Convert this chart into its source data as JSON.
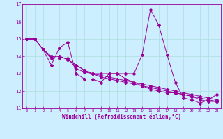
{
  "xlabel": "Windchill (Refroidissement éolien,°C)",
  "background_color": "#cceeff",
  "grid_color": "#aadddd",
  "line_color": "#990099",
  "xlim": [
    -0.5,
    23.5
  ],
  "ylim": [
    11,
    17
  ],
  "yticks": [
    11,
    12,
    13,
    14,
    15,
    16,
    17
  ],
  "xticks": [
    0,
    1,
    2,
    3,
    4,
    5,
    6,
    7,
    8,
    9,
    10,
    11,
    12,
    13,
    14,
    15,
    16,
    17,
    18,
    19,
    20,
    21,
    22,
    23
  ],
  "series": [
    [
      15.0,
      15.0,
      14.4,
      13.5,
      14.5,
      14.8,
      13.0,
      12.7,
      12.7,
      12.5,
      13.0,
      13.0,
      13.0,
      13.0,
      14.1,
      16.7,
      15.8,
      14.1,
      12.5,
      11.6,
      11.5,
      11.3,
      11.5,
      11.8
    ],
    [
      15.0,
      15.0,
      14.4,
      13.9,
      13.9,
      13.9,
      13.3,
      13.1,
      13.0,
      13.0,
      13.0,
      13.0,
      12.7,
      12.5,
      12.3,
      12.1,
      12.0,
      11.9,
      11.9,
      11.8,
      11.7,
      11.5,
      11.4,
      11.4
    ],
    [
      15.0,
      15.0,
      14.4,
      14.0,
      14.0,
      13.8,
      13.5,
      13.2,
      13.0,
      12.9,
      12.8,
      12.7,
      12.6,
      12.5,
      12.4,
      12.3,
      12.2,
      12.1,
      12.0,
      11.9,
      11.8,
      11.7,
      11.6,
      11.5
    ],
    [
      15.0,
      15.0,
      14.4,
      14.0,
      14.0,
      13.8,
      13.5,
      13.2,
      13.0,
      12.8,
      12.7,
      12.6,
      12.5,
      12.4,
      12.3,
      12.2,
      12.1,
      12.0,
      11.9,
      11.8,
      11.7,
      11.6,
      11.5,
      11.4
    ]
  ]
}
